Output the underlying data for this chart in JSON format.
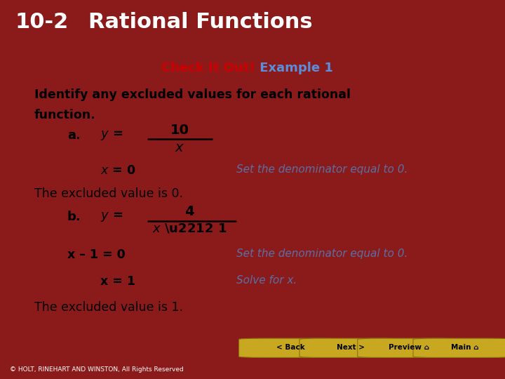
{
  "header_bg": "#8B1A1A",
  "header_number": "10-2",
  "header_title": "Rational Functions",
  "header_text_color": "#FFFFFF",
  "content_bg": "#FFFFFF",
  "outer_bg": "#8B1A1A",
  "check_it_out_text": "Check It Out!",
  "check_it_out_color": "#CC0000",
  "example_text": " Example 1",
  "example_color": "#5B8DD9",
  "subtitle_line1": "Identify any excluded values for each rational",
  "subtitle_line2": "function.",
  "subtitle_color": "#000000",
  "part_a_label": "a.",
  "part_a_num": "10",
  "part_a_den": "x",
  "part_a_eq": "x = 0",
  "part_a_note": "Set the denominator equal to 0.",
  "part_a_conclusion": "The excluded value is 0.",
  "part_b_label": "b.",
  "part_b_num": "4",
  "part_b_den": "x − 1",
  "part_b_eq1": "x – 1 = 0",
  "part_b_note1": "Set the denominator equal to 0.",
  "part_b_eq2": "x = 1",
  "part_b_note2": "Solve for x.",
  "part_b_conclusion": "The excluded value is 1.",
  "italic_blue": "#5B6FA5",
  "footer_bg": "#000000",
  "footer_text": "© HOLT, RINEHART AND WINSTON, All Rights Reserved",
  "footer_color": "#FFFFFF",
  "button_bg": "#C8A820",
  "button_text_color": "#000000"
}
